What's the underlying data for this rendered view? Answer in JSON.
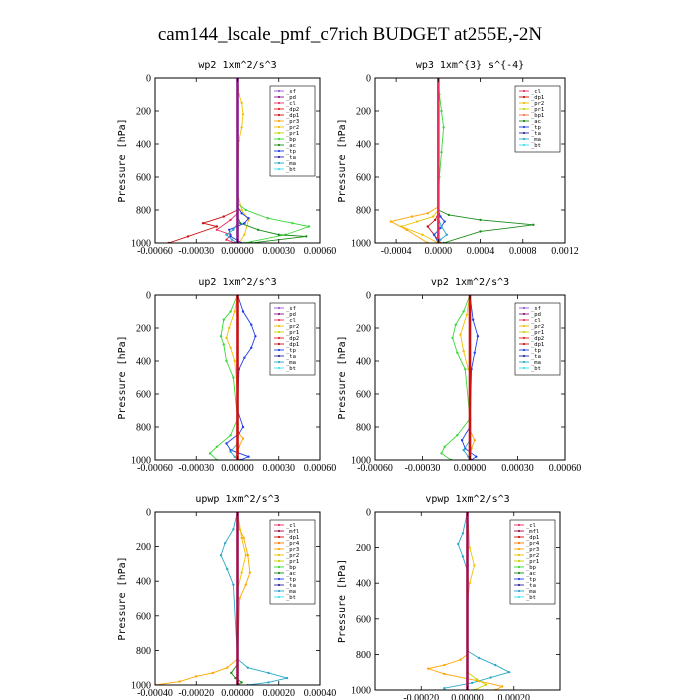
{
  "figure": {
    "title": "cam144_lscale_pmf_c7rich  BUDGET at255E,-2N"
  },
  "colors": {
    "sf": "#9b59d0",
    "pd": "#8b1a8b",
    "cl": "#e83060",
    "dp2": "#e8201f",
    "dp1": "#cc1010",
    "pr3": "#ffa500",
    "pr2": "#f0c000",
    "pr1": "#c8d400",
    "bp": "#38d838",
    "ac": "#1a8c1a",
    "tp": "#2040e8",
    "ta": "#2a2aa0",
    "ma": "#2aa8c8",
    "bt": "#40e0f0",
    "mfl": "#a01050",
    "dp4": "#b01030",
    "pr4": "#ff8000",
    "bp1": "#ff7040"
  },
  "chart_data": [
    {
      "type": "line",
      "title": "wp2   1xm^2/s^3",
      "ylabel": "Pressure [hPa]",
      "xlim": [
        -0.0006,
        0.0006
      ],
      "ylim": [
        1000,
        0
      ],
      "xticks": [
        -0.0006,
        -0.0003,
        0.0,
        0.0003,
        0.0006
      ],
      "xtick_labels": [
        "-0.00060",
        "-0.00030",
        "0.00000",
        "0.00030",
        "0.00060"
      ],
      "yticks": [
        0,
        200,
        400,
        600,
        800,
        1000
      ],
      "ytick_labels": [
        "0",
        "200",
        "400",
        "600",
        "800",
        "1000"
      ],
      "legend": [
        "_sf",
        "_pd",
        "_cl",
        "_dp2",
        "_dp1",
        "_pr3",
        "_pr2",
        "_pr1",
        "_bp",
        "_ac",
        "_tp",
        "_ta",
        "_ma",
        "_bt"
      ],
      "series": [
        {
          "key": "pr2",
          "x": [
            0,
            1e-05,
            3e-05,
            4e-05,
            3e-05,
            1e-05,
            0,
            3e-05,
            8e-05,
            5e-05,
            1e-05
          ],
          "y": [
            0,
            100,
            150,
            220,
            300,
            380,
            700,
            800,
            860,
            950,
            1000
          ]
        },
        {
          "key": "bp",
          "x": [
            0,
            0,
            0,
            6e-05,
            0.00022,
            0.0004,
            0.00052,
            0.00035,
            5e-05
          ],
          "y": [
            0,
            700,
            760,
            800,
            850,
            880,
            900,
            950,
            1000
          ]
        },
        {
          "key": "ac",
          "x": [
            0,
            0,
            2e-05,
            0.00015,
            0.0003,
            0.0005,
            0.0001
          ],
          "y": [
            0,
            840,
            880,
            920,
            950,
            960,
            1000
          ]
        },
        {
          "key": "dp1",
          "x": [
            0,
            0,
            -0.0001,
            -0.00025,
            -0.00015,
            -0.00036,
            -0.0005
          ],
          "y": [
            0,
            800,
            840,
            880,
            900,
            960,
            1000
          ]
        },
        {
          "key": "cl",
          "x": [
            0,
            0,
            -5e-05,
            -0.00015,
            -5e-05,
            -8e-05,
            -2e-05
          ],
          "y": [
            0,
            820,
            860,
            920,
            950,
            980,
            1000
          ]
        },
        {
          "key": "tp",
          "x": [
            0,
            0,
            3e-05,
            8e-05,
            5e-05,
            -6e-05,
            -5e-05,
            3e-05
          ],
          "y": [
            0,
            780,
            820,
            850,
            880,
            920,
            960,
            1000
          ]
        },
        {
          "key": "ma",
          "x": [
            0,
            0,
            -3e-05,
            -8e-05,
            -4e-05,
            0
          ],
          "y": [
            0,
            880,
            920,
            950,
            980,
            1000
          ]
        },
        {
          "key": "pd",
          "x": [
            0,
            0
          ],
          "y": [
            0,
            1000
          ]
        }
      ]
    },
    {
      "type": "line",
      "title": "wp3   1xm^{3} s^{-4}",
      "ylabel": "Pressure [hPa]",
      "xlim": [
        -0.0006,
        0.0012
      ],
      "ylim": [
        1000,
        0
      ],
      "xticks": [
        -0.0004,
        0.0,
        0.0004,
        0.0008,
        0.0012
      ],
      "xtick_labels": [
        "-0.0004",
        "0.0000",
        "0.0004",
        "0.0008",
        "0.0012"
      ],
      "yticks": [
        0,
        200,
        400,
        600,
        800,
        1000
      ],
      "ytick_labels": [
        "0",
        "200",
        "400",
        "600",
        "800",
        "1000"
      ],
      "legend": [
        "_cl",
        "_dp1",
        "_pr2",
        "_pr1",
        "_bp1",
        "_ac",
        "_tp",
        "_ta",
        "_ma",
        "_bt"
      ],
      "series": [
        {
          "key": "bp",
          "x": [
            0,
            1e-05,
            3e-05,
            5e-05,
            3e-05,
            1e-05,
            0
          ],
          "y": [
            0,
            100,
            200,
            300,
            450,
            600,
            800
          ]
        },
        {
          "key": "ac",
          "x": [
            0,
            0,
            0.0001,
            0.0004,
            0.0009,
            0.0004,
            5e-05
          ],
          "y": [
            0,
            800,
            830,
            860,
            890,
            930,
            1000
          ]
        },
        {
          "key": "pr3",
          "x": [
            0,
            0,
            -0.0001,
            -0.00025,
            -0.00045,
            -0.0003,
            -0.0001
          ],
          "y": [
            0,
            780,
            820,
            840,
            870,
            920,
            1000
          ]
        },
        {
          "key": "pr2",
          "x": [
            0,
            0,
            -5e-05,
            -0.0002,
            -0.00035,
            -0.00015,
            0
          ],
          "y": [
            0,
            800,
            840,
            870,
            900,
            950,
            1000
          ]
        },
        {
          "key": "dp1",
          "x": [
            0,
            0,
            -3e-05,
            -0.0001,
            -4e-05,
            2e-05
          ],
          "y": [
            0,
            820,
            860,
            900,
            950,
            1000
          ]
        },
        {
          "key": "tp",
          "x": [
            0,
            0,
            2e-05,
            6e-05,
            2e-05,
            -4e-05,
            0
          ],
          "y": [
            0,
            800,
            840,
            870,
            910,
            950,
            1000
          ]
        },
        {
          "key": "ma",
          "x": [
            0,
            0,
            3e-05,
            8e-05,
            2e-05,
            0
          ],
          "y": [
            0,
            850,
            900,
            950,
            980,
            1000
          ]
        },
        {
          "key": "cl",
          "x": [
            0,
            0
          ],
          "y": [
            0,
            1000
          ]
        }
      ]
    },
    {
      "type": "line",
      "title": "up2   1xm^2/s^3",
      "ylabel": "Pressure [hPa]",
      "xlim": [
        -0.0006,
        0.0006
      ],
      "ylim": [
        1000,
        0
      ],
      "xticks": [
        -0.0006,
        -0.0003,
        0.0,
        0.0003,
        0.0006
      ],
      "xtick_labels": [
        "-0.00060",
        "-0.00030",
        "0.00000",
        "0.00030",
        "0.00060"
      ],
      "yticks": [
        0,
        200,
        400,
        600,
        800,
        1000
      ],
      "ytick_labels": [
        "0",
        "200",
        "400",
        "600",
        "800",
        "1000"
      ],
      "legend": [
        "_sf",
        "_pd",
        "_cl",
        "_pr2",
        "_pr1",
        "_dp2",
        "_dp1",
        "_tp",
        "_ta",
        "_ma",
        "_bt"
      ],
      "series": [
        {
          "key": "bp",
          "x": [
            0,
            -5e-05,
            -0.0001,
            -0.00012,
            -0.0001,
            -8e-05,
            -3e-05,
            0,
            -5e-05,
            -0.00015,
            -0.0002,
            -0.00015
          ],
          "y": [
            0,
            100,
            150,
            250,
            300,
            400,
            500,
            750,
            850,
            920,
            960,
            1000
          ]
        },
        {
          "key": "pr2",
          "x": [
            0,
            -2e-05,
            -6e-05,
            -8e-05,
            -5e-05,
            -2e-05,
            0
          ],
          "y": [
            0,
            100,
            200,
            260,
            320,
            400,
            600
          ]
        },
        {
          "key": "tp",
          "x": [
            0,
            4e-05,
            0.0001,
            0.00013,
            0.0001,
            5e-05,
            1e-05,
            0,
            4e-05,
            1e-05,
            -8e-05,
            -5e-05,
            8e-05,
            2e-05
          ],
          "y": [
            0,
            100,
            180,
            250,
            320,
            380,
            450,
            700,
            800,
            840,
            900,
            940,
            980,
            1000
          ]
        },
        {
          "key": "ma",
          "x": [
            0,
            0,
            -5e-05,
            -2e-05,
            0
          ],
          "y": [
            0,
            900,
            950,
            980,
            1000
          ]
        },
        {
          "key": "pr3",
          "x": [
            0,
            0,
            4e-05,
            1e-05,
            0
          ],
          "y": [
            0,
            830,
            870,
            920,
            1000
          ]
        },
        {
          "key": "dp1",
          "x": [
            0,
            0
          ],
          "y": [
            0,
            1000
          ]
        }
      ]
    },
    {
      "type": "line",
      "title": "vp2   1xm^2/s^3",
      "ylabel": "Pressure [hPa]",
      "xlim": [
        -0.0006,
        0.0006
      ],
      "ylim": [
        1000,
        0
      ],
      "xticks": [
        -0.0006,
        -0.0003,
        0.0,
        0.0003,
        0.0006
      ],
      "xtick_labels": [
        "-0.00060",
        "-0.00030",
        "0.00000",
        "0.00030",
        "0.00060"
      ],
      "yticks": [
        0,
        200,
        400,
        600,
        800,
        1000
      ],
      "ytick_labels": [
        "0",
        "200",
        "400",
        "600",
        "800",
        "1000"
      ],
      "legend": [
        "_sf",
        "_pd",
        "_cl",
        "_pr2",
        "_pr1",
        "_dp2",
        "_dp1",
        "_tp",
        "_ta",
        "_ma",
        "_bt"
      ],
      "series": [
        {
          "key": "bp",
          "x": [
            0,
            -4e-05,
            -9e-05,
            -0.00011,
            -8e-05,
            -3e-05,
            0,
            -8e-05,
            -0.00016,
            -0.00018,
            -0.00012
          ],
          "y": [
            0,
            100,
            180,
            260,
            350,
            450,
            750,
            850,
            920,
            960,
            1000
          ]
        },
        {
          "key": "pr2",
          "x": [
            0,
            -2e-05,
            -6e-05,
            -4e-05,
            -1e-05
          ],
          "y": [
            0,
            120,
            240,
            340,
            450
          ]
        },
        {
          "key": "tp",
          "x": [
            0,
            2e-05,
            5e-05,
            3e-05,
            1e-05,
            0,
            -5e-05,
            -3e-05,
            4e-05,
            1e-05
          ],
          "y": [
            0,
            150,
            250,
            350,
            450,
            800,
            880,
            930,
            980,
            1000
          ]
        },
        {
          "key": "ma",
          "x": [
            0,
            0,
            -4e-05,
            -1e-05,
            0
          ],
          "y": [
            0,
            880,
            940,
            980,
            1000
          ]
        },
        {
          "key": "pr3",
          "x": [
            0,
            0,
            3e-05,
            1e-05,
            0
          ],
          "y": [
            0,
            820,
            880,
            930,
            1000
          ]
        },
        {
          "key": "dp1",
          "x": [
            0,
            0
          ],
          "y": [
            0,
            1000
          ]
        }
      ]
    },
    {
      "type": "line",
      "title": "upwp   1xm^2/s^3",
      "ylabel": "Pressure [hPa]",
      "xlim": [
        -0.0004,
        0.0004
      ],
      "ylim": [
        1000,
        0
      ],
      "xticks": [
        -0.0004,
        -0.0002,
        0.0,
        0.0002,
        0.0004
      ],
      "xtick_labels": [
        "-0.00040",
        "-0.00020",
        "0.00000",
        "0.00020",
        "0.00040"
      ],
      "yticks": [
        0,
        200,
        400,
        600,
        800,
        1000
      ],
      "ytick_labels": [
        "0",
        "200",
        "400",
        "600",
        "800",
        "1000"
      ],
      "legend": [
        "_cl",
        "_mfl",
        "_dp1",
        "_pr4",
        "_pr3",
        "_pr2",
        "_pr1",
        "_bp",
        "_ac",
        "_tp",
        "_ta",
        "_ma",
        "_bt"
      ],
      "series": [
        {
          "key": "pr3",
          "x": [
            0,
            1e-05,
            3e-05,
            5e-05,
            6e-05,
            4e-05,
            1e-05,
            0,
            -5e-05,
            -0.00012,
            -0.0002,
            -0.00028,
            -0.0004
          ],
          "y": [
            0,
            100,
            150,
            250,
            350,
            420,
            500,
            850,
            900,
            930,
            950,
            980,
            1000
          ]
        },
        {
          "key": "ma",
          "x": [
            0,
            -2e-05,
            -6e-05,
            -8e-05,
            -5e-05,
            -2e-05,
            0,
            5e-05,
            0.00015,
            0.00024,
            0.00015,
            5e-05
          ],
          "y": [
            0,
            100,
            180,
            250,
            330,
            420,
            850,
            900,
            930,
            960,
            985,
            1000
          ]
        },
        {
          "key": "pr2",
          "x": [
            0,
            2e-05,
            4e-05,
            2e-05,
            0
          ],
          "y": [
            0,
            150,
            250,
            350,
            450
          ]
        },
        {
          "key": "ac",
          "x": [
            0,
            0,
            -3e-05,
            -1e-05,
            2e-05,
            0
          ],
          "y": [
            0,
            880,
            930,
            960,
            985,
            1000
          ]
        },
        {
          "key": "mfl",
          "x": [
            0,
            0
          ],
          "y": [
            0,
            1000
          ]
        }
      ]
    },
    {
      "type": "line",
      "title": "vpwp   1xm^2/s^3",
      "ylabel": "Pressure [hPa]",
      "xlim": [
        -0.0004,
        0.0004
      ],
      "ylim": [
        1000,
        0
      ],
      "xticks": [
        -0.0002,
        0.0,
        0.0002
      ],
      "xtick_labels": [
        "-0.00020",
        "0.00000",
        "0.00020"
      ],
      "yticks": [
        0,
        200,
        400,
        600,
        800,
        1000
      ],
      "ytick_labels": [
        "0",
        "200",
        "400",
        "600",
        "800",
        "1000"
      ],
      "legend": [
        "_cl",
        "_mfl",
        "_dp1",
        "_pr4",
        "_pr3",
        "_pr2",
        "_pr1",
        "_bp",
        "_ac",
        "_tp",
        "_ta",
        "_ma",
        "_bt"
      ],
      "series": [
        {
          "key": "ma",
          "x": [
            0,
            -2e-05,
            -4e-05,
            -2e-05,
            0,
            0,
            5e-05,
            0.00012,
            0.00018,
            0.0001,
            2e-05,
            -0.0001,
            -0.0001
          ],
          "y": [
            0,
            120,
            180,
            250,
            330,
            780,
            820,
            860,
            900,
            930,
            960,
            990,
            1000
          ]
        },
        {
          "key": "pr3",
          "x": [
            0,
            0,
            -3e-05,
            -0.0001,
            -0.00017,
            -0.0001,
            5e-05,
            0.00015,
            0.00012
          ],
          "y": [
            0,
            800,
            830,
            860,
            880,
            910,
            950,
            980,
            1000
          ]
        },
        {
          "key": "pr2",
          "x": [
            0,
            1e-05,
            3e-05,
            1e-05,
            0
          ],
          "y": [
            0,
            200,
            300,
            400,
            500
          ]
        },
        {
          "key": "pr1",
          "x": [
            0,
            0,
            4e-05,
            8e-05,
            3e-05
          ],
          "y": [
            0,
            900,
            940,
            970,
            1000
          ]
        },
        {
          "key": "mfl",
          "x": [
            0,
            0
          ],
          "y": [
            0,
            1000
          ]
        }
      ]
    }
  ]
}
